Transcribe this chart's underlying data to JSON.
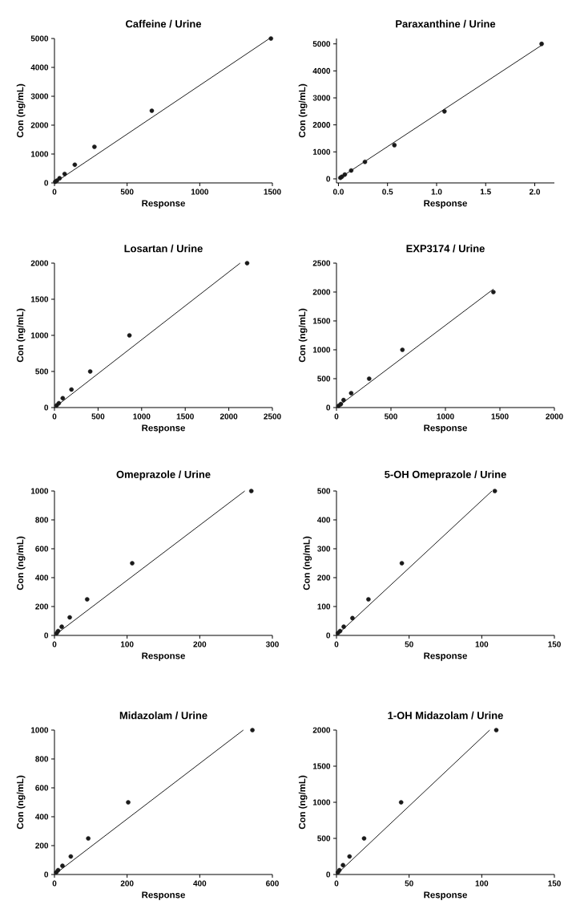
{
  "chart_data": [
    {
      "type": "scatter",
      "title": "Caffeine / Urine",
      "xlabel": "Response",
      "ylabel": "Con (ng/mL)",
      "xlim": [
        0,
        1500
      ],
      "ylim": [
        0,
        5000
      ],
      "xticks": [
        0,
        500,
        1000,
        1500
      ],
      "yticks": [
        0,
        1000,
        2000,
        3000,
        4000,
        5000
      ],
      "series": [
        {
          "marker": "circle",
          "color": "#1a1a1a",
          "x": [
            5,
            17,
            35,
            70,
            140,
            275,
            670,
            1490
          ],
          "values": [
            40,
            80,
            160,
            310,
            630,
            1250,
            2500,
            5000
          ]
        },
        {
          "type": "line",
          "color": "#1a1a1a",
          "x": [
            0,
            1480
          ],
          "values": [
            0,
            5000
          ]
        }
      ]
    },
    {
      "type": "scatter",
      "title": "Paraxanthine / Urine",
      "xlabel": "Response",
      "ylabel": "Con (ng/mL)",
      "xlim": [
        -0.02,
        2.2
      ],
      "ylim": [
        -150,
        5200
      ],
      "xticks": [
        {
          "value": 0,
          "label": "0.0"
        },
        {
          "value": 0.5,
          "label": "0.5"
        },
        {
          "value": 1,
          "label": "1.0"
        },
        {
          "value": 1.5,
          "label": "1.5"
        },
        {
          "value": 2,
          "label": "2.0"
        }
      ],
      "yticks": [
        0,
        1000,
        2000,
        3000,
        4000,
        5000
      ],
      "series": [
        {
          "marker": "circle",
          "color": "#1a1a1a",
          "x": [
            0.02,
            0.035,
            0.065,
            0.13,
            0.27,
            0.57,
            1.08,
            2.07
          ],
          "values": [
            40,
            80,
            160,
            310,
            630,
            1250,
            2500,
            5000
          ]
        },
        {
          "type": "line",
          "color": "#1a1a1a",
          "x": [
            0,
            2.07
          ],
          "values": [
            0,
            4950
          ]
        }
      ]
    },
    {
      "type": "scatter",
      "title": "Losartan / Urine",
      "xlabel": "Response",
      "ylabel": "Con (ng/mL)",
      "xlim": [
        0,
        2500
      ],
      "ylim": [
        0,
        2000
      ],
      "xticks": [
        0,
        500,
        1000,
        1500,
        2000,
        2500
      ],
      "yticks": [
        0,
        500,
        1000,
        1500,
        2000
      ],
      "series": [
        {
          "marker": "circle",
          "color": "#1a1a1a",
          "x": [
            25,
            50,
            95,
            195,
            410,
            860,
            2210
          ],
          "values": [
            30,
            60,
            130,
            250,
            500,
            1000,
            2000
          ]
        },
        {
          "type": "line",
          "color": "#1a1a1a",
          "x": [
            0,
            2130
          ],
          "values": [
            0,
            2000
          ]
        }
      ]
    },
    {
      "type": "scatter",
      "title": "EXP3174 / Urine",
      "xlabel": "Response",
      "ylabel": "Con (ng/mL)",
      "xlim": [
        0,
        2000
      ],
      "ylim": [
        0,
        2500
      ],
      "xticks": [
        0,
        500,
        1000,
        1500,
        2000
      ],
      "yticks": [
        0,
        500,
        1000,
        1500,
        2000,
        2500
      ],
      "series": [
        {
          "marker": "circle",
          "color": "#1a1a1a",
          "x": [
            20,
            40,
            65,
            135,
            300,
            605,
            1440
          ],
          "values": [
            30,
            60,
            130,
            250,
            500,
            1000,
            2000
          ]
        },
        {
          "type": "line",
          "color": "#1a1a1a",
          "x": [
            0,
            1440
          ],
          "values": [
            0,
            2050
          ]
        }
      ]
    },
    {
      "type": "scatter",
      "title": "Omeprazole / Urine",
      "xlabel": "Response",
      "ylabel": "Con (ng/mL)",
      "xlim": [
        0,
        300
      ],
      "ylim": [
        0,
        1000
      ],
      "xticks": [
        0,
        100,
        200,
        300
      ],
      "yticks": [
        0,
        200,
        400,
        600,
        800,
        1000
      ],
      "series": [
        {
          "marker": "circle",
          "color": "#1a1a1a",
          "x": [
            3,
            5,
            10,
            21,
            45,
            107,
            271
          ],
          "values": [
            15,
            30,
            60,
            125,
            250,
            500,
            1000
          ]
        },
        {
          "type": "line",
          "color": "#1a1a1a",
          "x": [
            0,
            262
          ],
          "values": [
            0,
            1000
          ]
        }
      ]
    },
    {
      "type": "scatter",
      "title": "5-OH Omeprazole / Urine",
      "xlabel": "Response",
      "ylabel": "Con (ng/mL)",
      "xlim": [
        0,
        150
      ],
      "ylim": [
        0,
        500
      ],
      "xticks": [
        0,
        50,
        100,
        150
      ],
      "yticks": [
        0,
        100,
        200,
        300,
        400,
        500
      ],
      "series": [
        {
          "marker": "circle",
          "color": "#1a1a1a",
          "x": [
            1,
            2.5,
            5,
            11,
            22,
            45,
            109
          ],
          "values": [
            8,
            15,
            30,
            60,
            125,
            250,
            500
          ]
        },
        {
          "type": "line",
          "color": "#1a1a1a",
          "x": [
            0,
            107
          ],
          "values": [
            0,
            500
          ]
        }
      ]
    },
    {
      "type": "scatter",
      "title": "Midazolam / Urine",
      "xlabel": "Response",
      "ylabel": "Con (ng/mL)",
      "xlim": [
        0,
        600
      ],
      "ylim": [
        0,
        1000
      ],
      "xticks": [
        0,
        200,
        400,
        600
      ],
      "yticks": [
        0,
        200,
        400,
        600,
        800,
        1000
      ],
      "series": [
        {
          "marker": "circle",
          "color": "#1a1a1a",
          "x": [
            5,
            10,
            22,
            45,
            93,
            203,
            545
          ],
          "values": [
            15,
            30,
            60,
            125,
            250,
            500,
            1000
          ]
        },
        {
          "type": "line",
          "color": "#1a1a1a",
          "x": [
            0,
            520
          ],
          "values": [
            0,
            1000
          ]
        }
      ]
    },
    {
      "type": "scatter",
      "title": "1-OH Midazolam / Urine",
      "xlabel": "Response",
      "ylabel": "Con (ng/mL)",
      "xlim": [
        0,
        150
      ],
      "ylim": [
        0,
        2000
      ],
      "xticks": [
        0,
        50,
        100,
        150
      ],
      "yticks": [
        0,
        500,
        1000,
        1500,
        2000
      ],
      "series": [
        {
          "marker": "circle",
          "color": "#1a1a1a",
          "x": [
            1,
            2,
            4.5,
            9,
            19,
            44.5,
            110
          ],
          "values": [
            30,
            60,
            130,
            250,
            500,
            1000,
            2000
          ]
        },
        {
          "type": "line",
          "color": "#1a1a1a",
          "x": [
            0,
            105.5
          ],
          "values": [
            0,
            2000
          ]
        }
      ]
    }
  ]
}
